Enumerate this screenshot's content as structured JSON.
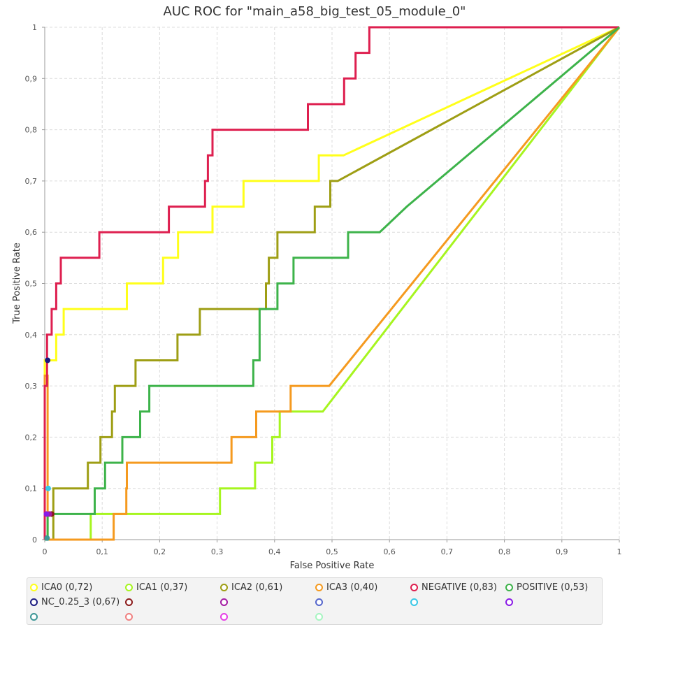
{
  "chart_data": {
    "type": "line",
    "title": "AUC ROC for \"main_a58_big_test_05_module_0\"",
    "xlabel": "False Positive Rate",
    "ylabel": "True Positive Rate",
    "xlim": [
      0,
      1
    ],
    "ylim": [
      0,
      1
    ],
    "x_ticks": [
      "0",
      "0,1",
      "0,2",
      "0,3",
      "0,4",
      "0,5",
      "0,6",
      "0,7",
      "0,8",
      "0,9",
      "1"
    ],
    "y_ticks": [
      "0",
      "0,1",
      "0,2",
      "0,3",
      "0,4",
      "0,5",
      "0,6",
      "0,7",
      "0,8",
      "0,9",
      "1"
    ],
    "grid": true,
    "legend_position": "bottom",
    "series": [
      {
        "name": "ICA0 (0,72)",
        "color": "#ffff1a",
        "points": [
          [
            0,
            0
          ],
          [
            0,
            0.35
          ],
          [
            0.02,
            0.35
          ],
          [
            0.02,
            0.4
          ],
          [
            0.033,
            0.4
          ],
          [
            0.033,
            0.45
          ],
          [
            0.143,
            0.45
          ],
          [
            0.143,
            0.5
          ],
          [
            0.206,
            0.5
          ],
          [
            0.206,
            0.55
          ],
          [
            0.232,
            0.55
          ],
          [
            0.232,
            0.6
          ],
          [
            0.292,
            0.6
          ],
          [
            0.292,
            0.65
          ],
          [
            0.346,
            0.65
          ],
          [
            0.346,
            0.7
          ],
          [
            0.477,
            0.7
          ],
          [
            0.477,
            0.75
          ],
          [
            0.52,
            0.75
          ],
          [
            1,
            1
          ]
        ]
      },
      {
        "name": "ICA1 (0,37)",
        "color": "#a6f51f",
        "points": [
          [
            0,
            0
          ],
          [
            0.08,
            0
          ],
          [
            0.08,
            0.05
          ],
          [
            0.305,
            0.05
          ],
          [
            0.305,
            0.1
          ],
          [
            0.366,
            0.1
          ],
          [
            0.366,
            0.15
          ],
          [
            0.396,
            0.15
          ],
          [
            0.396,
            0.2
          ],
          [
            0.409,
            0.2
          ],
          [
            0.409,
            0.25
          ],
          [
            0.484,
            0.25
          ],
          [
            1,
            1
          ]
        ]
      },
      {
        "name": "ICA2 (0,61)",
        "color": "#9e9e14",
        "points": [
          [
            0,
            0
          ],
          [
            0.015,
            0
          ],
          [
            0.015,
            0.1
          ],
          [
            0.075,
            0.1
          ],
          [
            0.075,
            0.15
          ],
          [
            0.097,
            0.15
          ],
          [
            0.097,
            0.2
          ],
          [
            0.117,
            0.2
          ],
          [
            0.117,
            0.25
          ],
          [
            0.122,
            0.25
          ],
          [
            0.122,
            0.3
          ],
          [
            0.158,
            0.3
          ],
          [
            0.158,
            0.35
          ],
          [
            0.231,
            0.35
          ],
          [
            0.231,
            0.4
          ],
          [
            0.27,
            0.4
          ],
          [
            0.27,
            0.45
          ],
          [
            0.385,
            0.45
          ],
          [
            0.385,
            0.5
          ],
          [
            0.39,
            0.5
          ],
          [
            0.39,
            0.55
          ],
          [
            0.405,
            0.55
          ],
          [
            0.405,
            0.6
          ],
          [
            0.47,
            0.6
          ],
          [
            0.47,
            0.65
          ],
          [
            0.497,
            0.65
          ],
          [
            0.497,
            0.7
          ],
          [
            0.51,
            0.7
          ],
          [
            1,
            1
          ]
        ]
      },
      {
        "name": "ICA3 (0,40)",
        "color": "#f59a1f",
        "points": [
          [
            0,
            0
          ],
          [
            0,
            0.32
          ],
          [
            0.005,
            0.32
          ],
          [
            0.005,
            0
          ],
          [
            0.12,
            0
          ],
          [
            0.12,
            0.05
          ],
          [
            0.142,
            0.05
          ],
          [
            0.142,
            0.1
          ],
          [
            0.143,
            0.1
          ],
          [
            0.143,
            0.15
          ],
          [
            0.325,
            0.15
          ],
          [
            0.325,
            0.2
          ],
          [
            0.368,
            0.2
          ],
          [
            0.368,
            0.25
          ],
          [
            0.428,
            0.25
          ],
          [
            0.428,
            0.3
          ],
          [
            0.495,
            0.3
          ],
          [
            1,
            1
          ]
        ]
      },
      {
        "name": "NEGATIVE (0,83)",
        "color": "#de1f4f",
        "points": [
          [
            0,
            0
          ],
          [
            0,
            0.3
          ],
          [
            0.004,
            0.3
          ],
          [
            0.004,
            0.4
          ],
          [
            0.012,
            0.4
          ],
          [
            0.012,
            0.45
          ],
          [
            0.02,
            0.45
          ],
          [
            0.02,
            0.5
          ],
          [
            0.028,
            0.5
          ],
          [
            0.028,
            0.55
          ],
          [
            0.095,
            0.55
          ],
          [
            0.095,
            0.6
          ],
          [
            0.216,
            0.6
          ],
          [
            0.216,
            0.65
          ],
          [
            0.279,
            0.65
          ],
          [
            0.279,
            0.7
          ],
          [
            0.284,
            0.7
          ],
          [
            0.284,
            0.75
          ],
          [
            0.292,
            0.75
          ],
          [
            0.292,
            0.8
          ],
          [
            0.458,
            0.8
          ],
          [
            0.458,
            0.85
          ],
          [
            0.521,
            0.85
          ],
          [
            0.521,
            0.9
          ],
          [
            0.541,
            0.9
          ],
          [
            0.541,
            0.95
          ],
          [
            0.565,
            0.95
          ],
          [
            0.565,
            1
          ],
          [
            1,
            1
          ]
        ]
      },
      {
        "name": "POSITIVE (0,53)",
        "color": "#3db34a",
        "points": [
          [
            0,
            0
          ],
          [
            0.005,
            0
          ],
          [
            0.005,
            0.05
          ],
          [
            0.087,
            0.05
          ],
          [
            0.087,
            0.1
          ],
          [
            0.105,
            0.1
          ],
          [
            0.105,
            0.15
          ],
          [
            0.135,
            0.15
          ],
          [
            0.135,
            0.2
          ],
          [
            0.166,
            0.2
          ],
          [
            0.166,
            0.25
          ],
          [
            0.182,
            0.25
          ],
          [
            0.182,
            0.3
          ],
          [
            0.363,
            0.3
          ],
          [
            0.363,
            0.35
          ],
          [
            0.374,
            0.35
          ],
          [
            0.374,
            0.45
          ],
          [
            0.405,
            0.45
          ],
          [
            0.405,
            0.5
          ],
          [
            0.433,
            0.5
          ],
          [
            0.433,
            0.55
          ],
          [
            0.528,
            0.55
          ],
          [
            0.528,
            0.6
          ],
          [
            0.583,
            0.6
          ],
          [
            0.63,
            0.65
          ],
          [
            1,
            1
          ]
        ]
      }
    ],
    "markers": [
      {
        "series_index": 6,
        "x": 0.005,
        "y": 0.35,
        "color": "#1a1a80"
      },
      {
        "series_index": 7,
        "x": 0.012,
        "y": 0.05,
        "color": "#8b1a1a"
      },
      {
        "series_index": 8,
        "x": 0.008,
        "y": 0.05,
        "color": "#a31aa3"
      },
      {
        "series_index": 10,
        "x": 0.006,
        "y": 0.1,
        "color": "#38c7e6"
      },
      {
        "series_index": 11,
        "x": 0.003,
        "y": 0.05,
        "color": "#8a1ae6"
      },
      {
        "series_index": 12,
        "x": 0.004,
        "y": 0.003,
        "color": "#3d9696"
      }
    ]
  },
  "legend": [
    {
      "label": "ICA0 (0,72)",
      "color": "#ffff1a"
    },
    {
      "label": "ICA1 (0,37)",
      "color": "#a6f51f"
    },
    {
      "label": "ICA2 (0,61)",
      "color": "#9e9e14"
    },
    {
      "label": "ICA3 (0,40)",
      "color": "#f59a1f"
    },
    {
      "label": "NEGATIVE (0,83)",
      "color": "#de1f4f"
    },
    {
      "label": "POSITIVE (0,53)",
      "color": "#3db34a"
    },
    {
      "label": "NC_0.25_3 (0,67)",
      "color": "#1a1a80"
    },
    {
      "label": "",
      "color": "#8b1a1a"
    },
    {
      "label": "",
      "color": "#a31aa3"
    },
    {
      "label": "",
      "color": "#5566cc"
    },
    {
      "label": "",
      "color": "#38c7e6"
    },
    {
      "label": "",
      "color": "#8a1ae6"
    },
    {
      "label": "",
      "color": "#3d9696"
    },
    {
      "label": "",
      "color": "#f08080"
    },
    {
      "label": "",
      "color": "#e63de6"
    },
    {
      "label": "",
      "color": "#a6f5c0"
    }
  ]
}
